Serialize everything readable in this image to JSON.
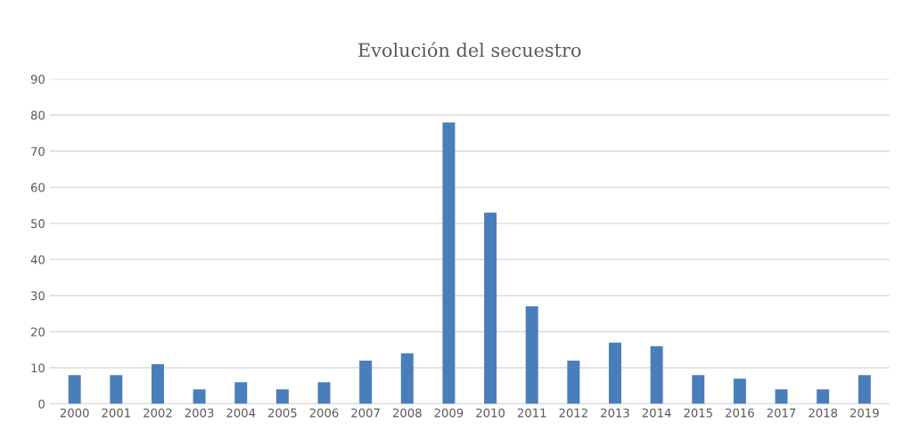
{
  "chart_data": {
    "type": "bar",
    "title": "Evolución del secuestro",
    "categories": [
      "2000",
      "2001",
      "2002",
      "2003",
      "2004",
      "2005",
      "2006",
      "2007",
      "2008",
      "2009",
      "2010",
      "2011",
      "2012",
      "2013",
      "2014",
      "2015",
      "2016",
      "2017",
      "2018",
      "2019"
    ],
    "values": [
      8,
      8,
      11,
      4,
      6,
      4,
      6,
      12,
      14,
      78,
      53,
      27,
      12,
      17,
      16,
      8,
      7,
      4,
      4,
      8
    ],
    "color": "#4a7ebb",
    "ylim": [
      0,
      90
    ],
    "yticks": [
      0,
      10,
      20,
      30,
      40,
      50,
      60,
      70,
      80,
      90
    ],
    "grid": "y"
  }
}
